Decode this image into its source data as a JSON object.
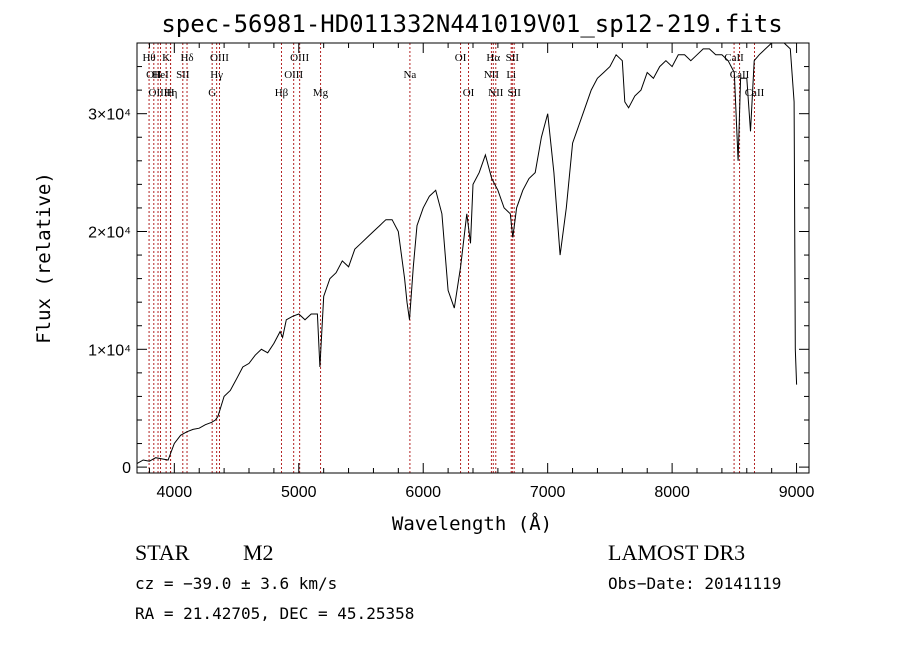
{
  "chart_data": {
    "type": "line",
    "title": "spec-56981-HD011332N441019V01_sp12-219.fits",
    "xlabel": "Wavelength (Å)",
    "ylabel": "Flux (relative)",
    "xlim": [
      3700,
      9100
    ],
    "ylim": [
      -500,
      36000
    ],
    "x_ticks": [
      {
        "value": 4000,
        "label": "4000"
      },
      {
        "value": 5000,
        "label": "5000"
      },
      {
        "value": 6000,
        "label": "6000"
      },
      {
        "value": 7000,
        "label": "7000"
      },
      {
        "value": 8000,
        "label": "8000"
      },
      {
        "value": 9000,
        "label": "9000"
      }
    ],
    "y_ticks": [
      {
        "value": 0,
        "label": "0"
      },
      {
        "value": 10000,
        "label": "1×10⁴"
      },
      {
        "value": 20000,
        "label": "2×10⁴"
      },
      {
        "value": 30000,
        "label": "3×10⁴"
      }
    ],
    "series": [
      {
        "name": "spectrum",
        "x": [
          3700,
          3750,
          3800,
          3850,
          3900,
          3950,
          4000,
          4050,
          4100,
          4150,
          4200,
          4250,
          4300,
          4330,
          4350,
          4400,
          4450,
          4500,
          4550,
          4600,
          4650,
          4700,
          4750,
          4800,
          4850,
          4870,
          4900,
          4950,
          5000,
          5050,
          5100,
          5150,
          5170,
          5200,
          5250,
          5300,
          5350,
          5400,
          5450,
          5500,
          5550,
          5600,
          5650,
          5700,
          5750,
          5800,
          5850,
          5870,
          5890,
          5920,
          5950,
          6000,
          6050,
          6100,
          6150,
          6200,
          6250,
          6300,
          6350,
          6380,
          6400,
          6450,
          6500,
          6550,
          6600,
          6650,
          6700,
          6720,
          6750,
          6800,
          6850,
          6900,
          6950,
          7000,
          7050,
          7100,
          7150,
          7200,
          7250,
          7300,
          7350,
          7400,
          7450,
          7500,
          7550,
          7600,
          7620,
          7650,
          7700,
          7750,
          7800,
          7850,
          7900,
          7950,
          8000,
          8050,
          8100,
          8150,
          8200,
          8250,
          8300,
          8350,
          8400,
          8450,
          8500,
          8530,
          8550,
          8580,
          8600,
          8630,
          8660,
          8700,
          8750,
          8800,
          8850,
          8900,
          8950,
          8980,
          8990,
          9000
        ],
        "y": [
          300,
          600,
          500,
          800,
          700,
          600,
          2000,
          2700,
          3000,
          3200,
          3300,
          3600,
          3800,
          4000,
          4300,
          6000,
          6500,
          7500,
          8500,
          8800,
          9500,
          10000,
          9700,
          10500,
          11500,
          11000,
          12500,
          12800,
          13000,
          12500,
          13000,
          13000,
          8500,
          14500,
          16000,
          16500,
          17500,
          17000,
          18500,
          19000,
          19500,
          20000,
          20500,
          21000,
          21000,
          20000,
          16000,
          14000,
          12500,
          17000,
          20500,
          22000,
          23000,
          23500,
          21500,
          15000,
          13500,
          17000,
          21500,
          19000,
          24000,
          25000,
          26500,
          24500,
          23500,
          22000,
          21500,
          19500,
          22000,
          23500,
          24500,
          25000,
          28000,
          30000,
          25000,
          18000,
          22000,
          27500,
          29000,
          30500,
          32000,
          33000,
          33500,
          34000,
          35000,
          34500,
          31000,
          30500,
          31500,
          32000,
          33500,
          33000,
          34000,
          34500,
          34000,
          35000,
          35000,
          34500,
          35000,
          35500,
          35500,
          35000,
          35000,
          34500,
          33500,
          26000,
          33000,
          33000,
          33000,
          28500,
          34500,
          35000,
          35500,
          36000,
          36000,
          36000,
          35500,
          31000,
          10000,
          7000
        ]
      }
    ],
    "lines": [
      {
        "w": 3797,
        "label": "Hθ",
        "row": 1
      },
      {
        "w": 3835,
        "label": "OII",
        "row": 2
      },
      {
        "w": 3869,
        "label": "OIII",
        "row": 3
      },
      {
        "w": 3889,
        "label": "HeI",
        "row": 2
      },
      {
        "w": 3934,
        "label": "K",
        "row": 1
      },
      {
        "w": 3970,
        "label": "Hη",
        "row": 3
      },
      {
        "w": 3969,
        "label": "H",
        "row": 3
      },
      {
        "w": 4068,
        "label": "SII",
        "row": 2
      },
      {
        "w": 4102,
        "label": "Hδ",
        "row": 1
      },
      {
        "w": 4304,
        "label": "G",
        "row": 3
      },
      {
        "w": 4340,
        "label": "Hγ",
        "row": 2
      },
      {
        "w": 4363,
        "label": "OIII",
        "row": 1
      },
      {
        "w": 4861,
        "label": "Hβ",
        "row": 3
      },
      {
        "w": 4959,
        "label": "OIII",
        "row": 2
      },
      {
        "w": 5007,
        "label": "OIII",
        "row": 1
      },
      {
        "w": 5175,
        "label": "Mg",
        "row": 3
      },
      {
        "w": 5893,
        "label": "Na",
        "row": 2
      },
      {
        "w": 6300,
        "label": "OI",
        "row": 1
      },
      {
        "w": 6364,
        "label": "OI",
        "row": 3
      },
      {
        "w": 6548,
        "label": "NII",
        "row": 2
      },
      {
        "w": 6563,
        "label": "Hα",
        "row": 1
      },
      {
        "w": 6583,
        "label": "NII",
        "row": 3
      },
      {
        "w": 6707,
        "label": "Li",
        "row": 2
      },
      {
        "w": 6716,
        "label": "SII",
        "row": 1
      },
      {
        "w": 6731,
        "label": "SII",
        "row": 3
      },
      {
        "w": 8498,
        "label": "CaII",
        "row": 1
      },
      {
        "w": 8542,
        "label": "CaII",
        "row": 2
      },
      {
        "w": 8662,
        "label": "CaII",
        "row": 3
      }
    ]
  },
  "info": {
    "object_class": "STAR",
    "subclass": "M2",
    "survey": "LAMOST DR3",
    "cz": "cz = −39.0 ± 3.6 km/s",
    "obs_date": "Obs−Date: 20141119",
    "coords": "RA =  21.42705, DEC =  45.25358"
  },
  "colors": {
    "axis": "#000000",
    "spectrum": "#000000",
    "line_marker": "#b22222"
  }
}
